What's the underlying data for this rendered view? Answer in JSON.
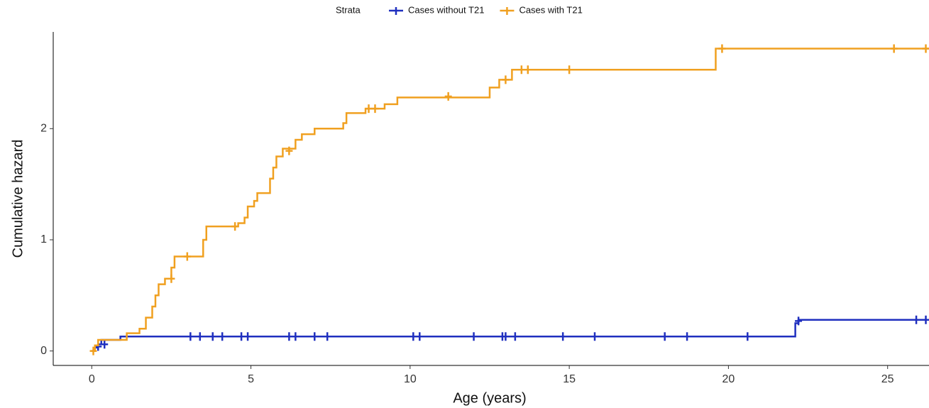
{
  "chart_data": {
    "type": "step",
    "legend_title": "Strata",
    "x_label": "Age (years)",
    "y_label": "Cumulative hazard",
    "xlim": [
      -1.21,
      26.3
    ],
    "ylim": [
      -0.13,
      2.87
    ],
    "xticks": [
      0,
      5,
      10,
      15,
      20,
      25
    ],
    "yticks": [
      0,
      1,
      2
    ],
    "grid": false,
    "legend_position": "top",
    "series": [
      {
        "name": "Cases without T21",
        "color": "#1f2fbf",
        "x": [
          0,
          0.1,
          0.2,
          0.3,
          0.9,
          22.1,
          22.2,
          26.3
        ],
        "y": [
          0,
          0.03,
          0.06,
          0.1,
          0.13,
          0.25,
          0.28,
          0.28
        ],
        "censor_x": [
          0.2,
          0.4,
          3.1,
          3.4,
          3.8,
          4.1,
          4.7,
          4.9,
          6.2,
          6.4,
          7.0,
          7.4,
          10.1,
          10.3,
          12.0,
          12.9,
          13.0,
          13.3,
          14.8,
          15.8,
          18.0,
          18.7,
          20.6,
          22.2,
          25.9,
          26.2
        ],
        "censor_y": [
          0.04,
          0.06,
          0.13,
          0.13,
          0.13,
          0.13,
          0.13,
          0.13,
          0.13,
          0.13,
          0.13,
          0.13,
          0.13,
          0.13,
          0.13,
          0.13,
          0.13,
          0.13,
          0.13,
          0.13,
          0.13,
          0.13,
          0.13,
          0.27,
          0.28,
          0.28
        ]
      },
      {
        "name": "Cases with T21",
        "color": "#f0a020",
        "x": [
          0,
          0.1,
          0.2,
          1.1,
          1.5,
          1.7,
          1.9,
          2.0,
          2.1,
          2.3,
          2.5,
          2.6,
          3.5,
          3.6,
          4.6,
          4.8,
          4.9,
          5.1,
          5.2,
          5.6,
          5.7,
          5.8,
          6.0,
          6.4,
          6.6,
          7.0,
          7.9,
          8.0,
          8.6,
          9.2,
          9.6,
          12.5,
          12.8,
          13.2,
          19.6,
          26.3
        ],
        "y": [
          0,
          0.05,
          0.1,
          0.16,
          0.2,
          0.3,
          0.4,
          0.5,
          0.6,
          0.65,
          0.75,
          0.85,
          1.0,
          1.12,
          1.15,
          1.2,
          1.3,
          1.35,
          1.42,
          1.55,
          1.65,
          1.75,
          1.82,
          1.9,
          1.95,
          2.0,
          2.05,
          2.14,
          2.18,
          2.22,
          2.28,
          2.37,
          2.44,
          2.53,
          2.72,
          2.72
        ],
        "censor_x": [
          0.05,
          2.5,
          3.0,
          4.5,
          6.2,
          8.7,
          8.9,
          11.2,
          13.0,
          13.5,
          13.7,
          15.0,
          19.8,
          25.2,
          26.2
        ],
        "censor_y": [
          0.0,
          0.65,
          0.85,
          1.12,
          1.8,
          2.18,
          2.18,
          2.29,
          2.44,
          2.53,
          2.53,
          2.53,
          2.72,
          2.72,
          2.72
        ]
      }
    ]
  }
}
